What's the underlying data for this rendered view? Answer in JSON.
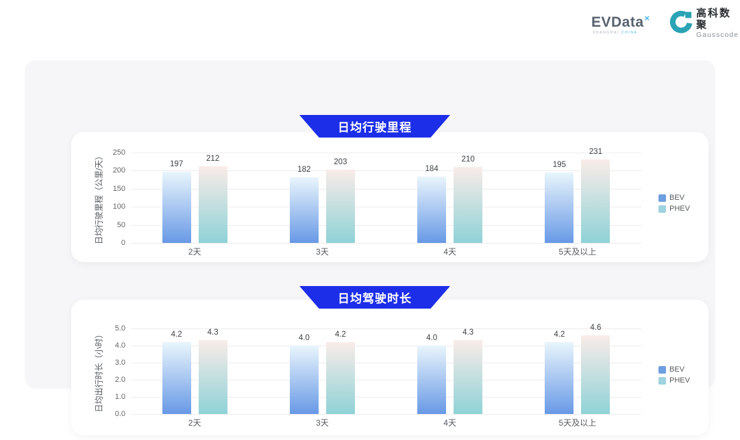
{
  "brand": {
    "evdata_text": "EVData",
    "evdata_sup": "×",
    "evdata_sub1": "SHANGHAI",
    "evdata_sub2": "CHINA",
    "gausscode_cn": "高科数聚",
    "gausscode_en": "Gausscode"
  },
  "colors": {
    "banner_blue": "#1c2ee8",
    "bev_gradient_top": "#e9f5fc",
    "bev_gradient_bottom": "#6899e6",
    "phev_gradient_top": "#f9ece8",
    "phev_gradient_bottom": "#8fd2d7",
    "legend_bev": "#6d9fe0",
    "legend_phev": "#9fd3e0",
    "gausscode_teal": "#2aa3b5"
  },
  "chart_data": [
    {
      "type": "bar",
      "title": "日均行驶里程",
      "ylabel": "日均行驶里程（公里/天）",
      "categories": [
        "2天",
        "3天",
        "4天",
        "5天及以上"
      ],
      "series": [
        {
          "name": "BEV",
          "values": [
            197,
            182,
            184,
            195
          ],
          "labels": [
            "197",
            "182",
            "184",
            "195"
          ]
        },
        {
          "name": "PHEV",
          "values": [
            212,
            203,
            210,
            231
          ],
          "labels": [
            "212",
            "203",
            "210",
            "231"
          ]
        }
      ],
      "ylim": [
        0,
        250
      ],
      "ytick_labels": [
        "0",
        "50",
        "100",
        "150",
        "200",
        "250"
      ],
      "grid": true,
      "legend": [
        "BEV",
        "PHEV"
      ],
      "legend_position": "right"
    },
    {
      "type": "bar",
      "title": "日均驾驶时长",
      "ylabel": "日均出行时长（小时）",
      "categories": [
        "2天",
        "3天",
        "4天",
        "5天及以上"
      ],
      "series": [
        {
          "name": "BEV",
          "values": [
            4.2,
            4.0,
            4.0,
            4.2
          ],
          "labels": [
            "4.2",
            "4.0",
            "4.0",
            "4.2"
          ]
        },
        {
          "name": "PHEV",
          "values": [
            4.3,
            4.2,
            4.3,
            4.6
          ],
          "labels": [
            "4.3",
            "4.2",
            "4.3",
            "4.6"
          ]
        }
      ],
      "ylim": [
        0,
        5
      ],
      "ytick_labels": [
        "0.0",
        "1.0",
        "2.0",
        "3.0",
        "4.0",
        "5.0"
      ],
      "grid": true,
      "legend": [
        "BEV",
        "PHEV"
      ],
      "legend_position": "right"
    }
  ]
}
